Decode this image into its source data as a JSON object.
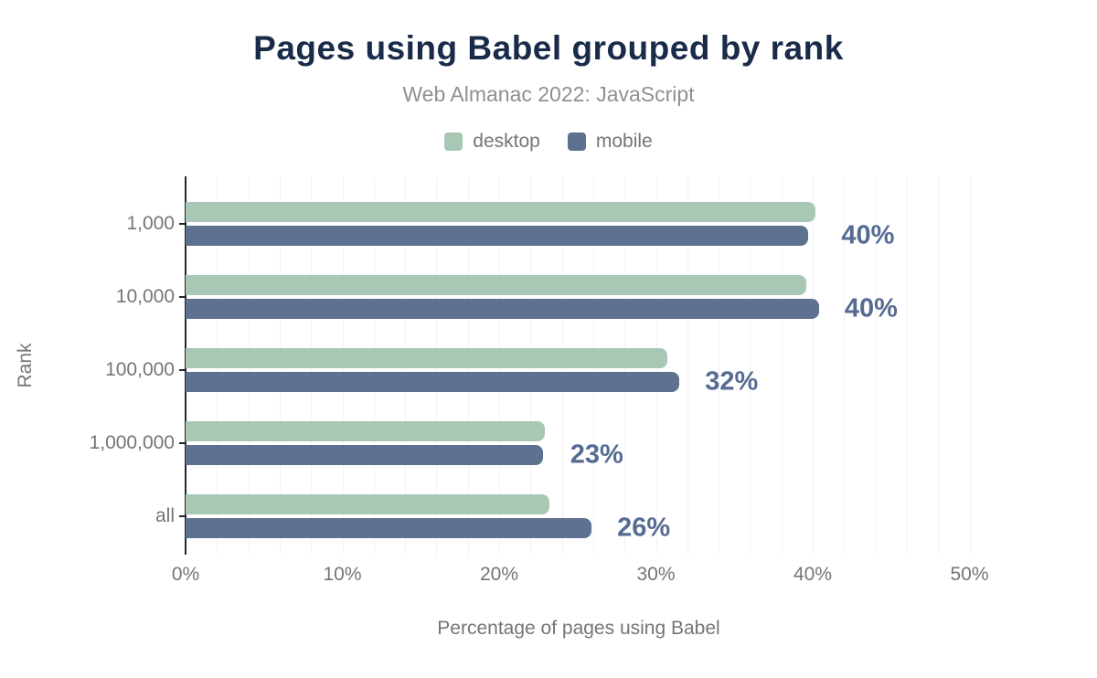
{
  "header": {
    "title": "Pages using Babel grouped by rank",
    "subtitle": "Web Almanac 2022: JavaScript"
  },
  "legend": [
    {
      "label": "desktop",
      "color": "#a8c8b5"
    },
    {
      "label": "mobile",
      "color": "#5f7190"
    }
  ],
  "chart_data": {
    "type": "bar",
    "orientation": "horizontal",
    "title": "Pages using Babel grouped by rank",
    "subtitle": "Web Almanac 2022: JavaScript",
    "xlabel": "Percentage of pages using Babel",
    "ylabel": "Rank",
    "categories": [
      "1,000",
      "10,000",
      "100,000",
      "1,000,000",
      "all"
    ],
    "series": [
      {
        "name": "desktop",
        "color": "#a8c8b5",
        "values": [
          40.2,
          39.6,
          30.7,
          22.9,
          23.2
        ]
      },
      {
        "name": "mobile",
        "color": "#5f7190",
        "values": [
          39.7,
          40.4,
          31.5,
          22.8,
          25.9
        ]
      }
    ],
    "bar_labels": [
      "40%",
      "40%",
      "32%",
      "23%",
      "26%"
    ],
    "x_ticks": [
      {
        "label": "0%",
        "value": 0
      },
      {
        "label": "10%",
        "value": 10
      },
      {
        "label": "20%",
        "value": 20
      },
      {
        "label": "30%",
        "value": 30
      },
      {
        "label": "40%",
        "value": 40
      },
      {
        "label": "50%",
        "value": 50
      }
    ],
    "xlim": [
      0,
      52.5
    ],
    "grid_step_pct": 2,
    "grid_on": true,
    "legend_position": "top",
    "colors": {
      "title": "#1a2b49",
      "subtitle": "#8d9093",
      "axis_text": "#757575",
      "axis_line": "#23282e",
      "gridline": "#f2f2f2",
      "bar_label": "#566b91",
      "background": "#ffffff"
    }
  }
}
